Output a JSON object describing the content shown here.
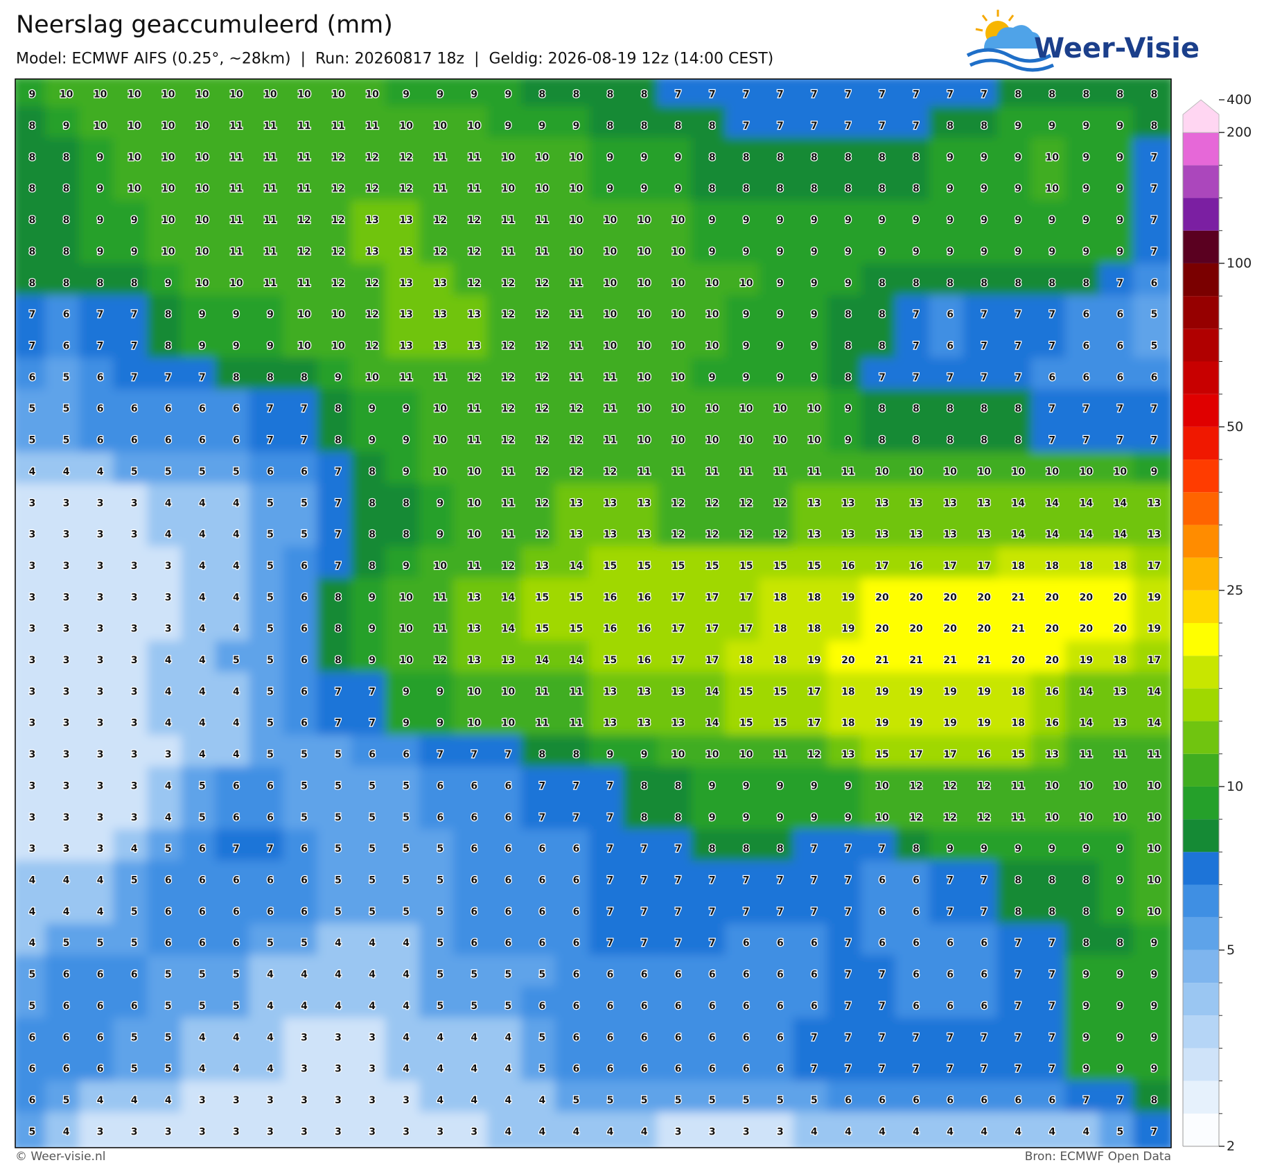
{
  "header": {
    "title": "Neerslag geaccumuleerd (mm)",
    "subtitle": "Model: ECMWF AIFS (0.25°, ~28km)  |  Run: 20260817 18z  |  Geldig: 2026-08-19 12z (14:00 CEST)"
  },
  "logo": {
    "text": "Weer-Visie"
  },
  "footer": {
    "left": "© Weer-visie.nl",
    "right": "Bron: ECMWF Open Data"
  },
  "grid": {
    "values": [
      [
        9,
        10,
        10,
        10,
        10,
        10,
        10,
        10,
        10,
        10,
        10,
        9,
        9,
        9,
        9,
        8,
        8,
        8,
        8,
        7,
        7,
        7,
        7,
        7,
        7,
        7,
        7,
        7,
        7,
        8,
        8,
        8,
        8,
        8
      ],
      [
        8,
        9,
        10,
        10,
        10,
        10,
        11,
        11,
        11,
        11,
        11,
        10,
        10,
        10,
        9,
        9,
        9,
        8,
        8,
        8,
        8,
        7,
        7,
        7,
        7,
        7,
        7,
        8,
        8,
        9,
        9,
        9,
        9,
        8
      ],
      [
        8,
        8,
        9,
        10,
        10,
        10,
        11,
        11,
        11,
        12,
        12,
        12,
        11,
        11,
        10,
        10,
        10,
        9,
        9,
        9,
        8,
        8,
        8,
        8,
        8,
        8,
        8,
        9,
        9,
        9,
        10,
        9,
        9,
        7
      ],
      [
        8,
        8,
        9,
        10,
        10,
        10,
        11,
        11,
        11,
        12,
        12,
        12,
        11,
        11,
        10,
        10,
        10,
        9,
        9,
        9,
        8,
        8,
        8,
        8,
        8,
        8,
        8,
        9,
        9,
        9,
        10,
        9,
        9,
        7
      ],
      [
        8,
        8,
        9,
        9,
        10,
        10,
        11,
        11,
        12,
        12,
        13,
        13,
        12,
        12,
        11,
        11,
        10,
        10,
        10,
        10,
        9,
        9,
        9,
        9,
        9,
        9,
        9,
        9,
        9,
        9,
        9,
        9,
        9,
        7
      ],
      [
        8,
        8,
        9,
        9,
        10,
        10,
        11,
        11,
        12,
        12,
        13,
        13,
        12,
        12,
        11,
        11,
        10,
        10,
        10,
        10,
        9,
        9,
        9,
        9,
        9,
        9,
        9,
        9,
        9,
        9,
        9,
        9,
        9,
        7
      ],
      [
        8,
        8,
        8,
        8,
        9,
        10,
        10,
        11,
        11,
        12,
        12,
        13,
        13,
        12,
        12,
        12,
        11,
        10,
        10,
        10,
        10,
        10,
        9,
        9,
        9,
        8,
        8,
        8,
        8,
        8,
        8,
        8,
        7,
        6
      ],
      [
        7,
        6,
        7,
        7,
        8,
        9,
        9,
        9,
        10,
        10,
        12,
        13,
        13,
        13,
        12,
        12,
        11,
        10,
        10,
        10,
        10,
        9,
        9,
        9,
        8,
        8,
        7,
        6,
        7,
        7,
        7,
        6,
        6,
        5
      ],
      [
        7,
        6,
        7,
        7,
        8,
        9,
        9,
        9,
        10,
        10,
        12,
        13,
        13,
        13,
        12,
        12,
        11,
        10,
        10,
        10,
        10,
        9,
        9,
        9,
        8,
        8,
        7,
        6,
        7,
        7,
        7,
        6,
        6,
        5
      ],
      [
        6,
        5,
        6,
        7,
        7,
        7,
        8,
        8,
        8,
        9,
        10,
        11,
        11,
        12,
        12,
        12,
        11,
        11,
        10,
        10,
        9,
        9,
        9,
        9,
        8,
        7,
        7,
        7,
        7,
        7,
        6,
        6,
        6,
        6
      ],
      [
        5,
        5,
        6,
        6,
        6,
        6,
        6,
        7,
        7,
        8,
        9,
        9,
        10,
        11,
        12,
        12,
        12,
        11,
        10,
        10,
        10,
        10,
        10,
        10,
        9,
        8,
        8,
        8,
        8,
        8,
        7,
        7,
        7,
        7
      ],
      [
        5,
        5,
        6,
        6,
        6,
        6,
        6,
        7,
        7,
        8,
        9,
        9,
        10,
        11,
        12,
        12,
        12,
        11,
        10,
        10,
        10,
        10,
        10,
        10,
        9,
        8,
        8,
        8,
        8,
        8,
        7,
        7,
        7,
        7
      ],
      [
        4,
        4,
        4,
        5,
        5,
        5,
        5,
        6,
        6,
        7,
        8,
        9,
        10,
        10,
        11,
        12,
        12,
        12,
        11,
        11,
        11,
        11,
        11,
        11,
        11,
        10,
        10,
        10,
        10,
        10,
        10,
        10,
        10,
        9
      ],
      [
        3,
        3,
        3,
        3,
        4,
        4,
        4,
        5,
        5,
        7,
        8,
        8,
        9,
        10,
        11,
        12,
        13,
        13,
        13,
        12,
        12,
        12,
        12,
        13,
        13,
        13,
        13,
        13,
        13,
        14,
        14,
        14,
        14,
        13
      ],
      [
        3,
        3,
        3,
        3,
        4,
        4,
        4,
        5,
        5,
        7,
        8,
        8,
        9,
        10,
        11,
        12,
        13,
        13,
        13,
        12,
        12,
        12,
        12,
        13,
        13,
        13,
        13,
        13,
        13,
        14,
        14,
        14,
        14,
        13
      ],
      [
        3,
        3,
        3,
        3,
        3,
        4,
        4,
        5,
        6,
        7,
        8,
        9,
        10,
        11,
        12,
        13,
        14,
        15,
        15,
        15,
        15,
        15,
        15,
        15,
        16,
        17,
        16,
        17,
        17,
        18,
        18,
        18,
        18,
        17
      ],
      [
        3,
        3,
        3,
        3,
        3,
        4,
        4,
        5,
        6,
        8,
        9,
        10,
        11,
        13,
        14,
        15,
        15,
        16,
        16,
        17,
        17,
        17,
        18,
        18,
        19,
        20,
        20,
        20,
        20,
        21,
        20,
        20,
        20,
        19
      ],
      [
        3,
        3,
        3,
        3,
        3,
        4,
        4,
        5,
        6,
        8,
        9,
        10,
        11,
        13,
        14,
        15,
        15,
        16,
        16,
        17,
        17,
        17,
        18,
        18,
        19,
        20,
        20,
        20,
        20,
        21,
        20,
        20,
        20,
        19
      ],
      [
        3,
        3,
        3,
        3,
        4,
        4,
        5,
        5,
        6,
        8,
        9,
        10,
        12,
        13,
        13,
        14,
        14,
        15,
        16,
        17,
        17,
        18,
        18,
        19,
        20,
        21,
        21,
        21,
        21,
        20,
        20,
        19,
        18,
        17
      ],
      [
        3,
        3,
        3,
        3,
        4,
        4,
        4,
        5,
        6,
        7,
        7,
        9,
        9,
        10,
        10,
        11,
        11,
        13,
        13,
        13,
        14,
        15,
        15,
        17,
        18,
        19,
        19,
        19,
        19,
        18,
        16,
        14,
        13,
        14
      ],
      [
        3,
        3,
        3,
        3,
        4,
        4,
        4,
        5,
        6,
        7,
        7,
        9,
        9,
        10,
        10,
        11,
        11,
        13,
        13,
        13,
        14,
        15,
        15,
        17,
        18,
        19,
        19,
        19,
        19,
        18,
        16,
        14,
        13,
        14
      ],
      [
        3,
        3,
        3,
        3,
        3,
        4,
        4,
        5,
        5,
        5,
        6,
        6,
        7,
        7,
        7,
        8,
        8,
        9,
        9,
        10,
        10,
        10,
        11,
        12,
        13,
        15,
        17,
        17,
        16,
        15,
        13,
        11,
        11,
        11
      ],
      [
        3,
        3,
        3,
        3,
        4,
        5,
        6,
        6,
        5,
        5,
        5,
        5,
        6,
        6,
        6,
        7,
        7,
        7,
        8,
        8,
        9,
        9,
        9,
        9,
        9,
        10,
        12,
        12,
        12,
        11,
        10,
        10,
        10,
        10
      ],
      [
        3,
        3,
        3,
        3,
        4,
        5,
        6,
        6,
        5,
        5,
        5,
        5,
        6,
        6,
        6,
        7,
        7,
        7,
        8,
        8,
        9,
        9,
        9,
        9,
        9,
        10,
        12,
        12,
        12,
        11,
        10,
        10,
        10,
        10
      ],
      [
        3,
        3,
        3,
        4,
        5,
        6,
        7,
        7,
        6,
        5,
        5,
        5,
        5,
        6,
        6,
        6,
        6,
        7,
        7,
        7,
        8,
        8,
        8,
        7,
        7,
        7,
        8,
        9,
        9,
        9,
        9,
        9,
        9,
        10
      ],
      [
        4,
        4,
        4,
        5,
        6,
        6,
        6,
        6,
        6,
        5,
        5,
        5,
        5,
        6,
        6,
        6,
        6,
        7,
        7,
        7,
        7,
        7,
        7,
        7,
        7,
        6,
        6,
        7,
        7,
        8,
        8,
        8,
        9,
        10
      ],
      [
        4,
        4,
        4,
        5,
        6,
        6,
        6,
        6,
        6,
        5,
        5,
        5,
        5,
        6,
        6,
        6,
        6,
        7,
        7,
        7,
        7,
        7,
        7,
        7,
        7,
        6,
        6,
        7,
        7,
        8,
        8,
        8,
        9,
        10
      ],
      [
        4,
        5,
        5,
        5,
        6,
        6,
        6,
        5,
        5,
        4,
        4,
        4,
        5,
        6,
        6,
        6,
        6,
        7,
        7,
        7,
        7,
        6,
        6,
        6,
        7,
        6,
        6,
        6,
        6,
        7,
        7,
        8,
        8,
        9
      ],
      [
        5,
        6,
        6,
        6,
        5,
        5,
        5,
        4,
        4,
        4,
        4,
        4,
        5,
        5,
        5,
        5,
        6,
        6,
        6,
        6,
        6,
        6,
        6,
        6,
        7,
        7,
        6,
        6,
        6,
        7,
        7,
        9,
        9,
        9
      ],
      [
        5,
        6,
        6,
        6,
        5,
        5,
        5,
        4,
        4,
        4,
        4,
        4,
        5,
        5,
        5,
        6,
        6,
        6,
        6,
        6,
        6,
        6,
        6,
        6,
        7,
        7,
        6,
        6,
        6,
        7,
        7,
        9,
        9,
        9
      ],
      [
        6,
        6,
        6,
        5,
        5,
        4,
        4,
        4,
        3,
        3,
        3,
        4,
        4,
        4,
        4,
        5,
        6,
        6,
        6,
        6,
        6,
        6,
        6,
        7,
        7,
        7,
        7,
        7,
        7,
        7,
        7,
        9,
        9,
        9
      ],
      [
        6,
        6,
        6,
        5,
        5,
        4,
        4,
        4,
        3,
        3,
        3,
        4,
        4,
        4,
        4,
        5,
        6,
        6,
        6,
        6,
        6,
        6,
        6,
        7,
        7,
        7,
        7,
        7,
        7,
        7,
        7,
        9,
        9,
        9
      ],
      [
        6,
        5,
        4,
        4,
        4,
        3,
        3,
        3,
        3,
        3,
        3,
        3,
        4,
        4,
        4,
        4,
        5,
        5,
        5,
        5,
        5,
        5,
        5,
        5,
        6,
        6,
        6,
        6,
        6,
        6,
        6,
        7,
        7,
        8
      ],
      [
        5,
        4,
        3,
        3,
        3,
        3,
        3,
        3,
        3,
        3,
        3,
        3,
        3,
        3,
        4,
        4,
        4,
        4,
        4,
        3,
        3,
        3,
        3,
        4,
        4,
        4,
        4,
        4,
        4,
        4,
        4,
        4,
        5,
        7
      ]
    ]
  },
  "colorbar": {
    "levels": [
      2,
      2.5,
      3,
      3.5,
      4,
      4.5,
      5,
      6,
      7,
      8,
      9,
      10,
      12.5,
      15,
      17.5,
      20,
      22.5,
      25,
      30,
      35,
      40,
      45,
      50,
      60,
      70,
      80,
      90,
      100,
      125,
      150,
      175,
      200,
      400
    ],
    "colors": [
      "#fbfdff",
      "#e6f1fc",
      "#cfe3f9",
      "#b5d5f6",
      "#9ac6f2",
      "#7eb5ee",
      "#5ea3e9",
      "#3f8fe3",
      "#1d74d8",
      "#158a35",
      "#25a02a",
      "#40ad20",
      "#70c410",
      "#a0d800",
      "#c8e600",
      "#ffff00",
      "#ffd700",
      "#ffb400",
      "#ff8c00",
      "#ff6400",
      "#ff3c00",
      "#f01800",
      "#e00000",
      "#c80000",
      "#b00000",
      "#960000",
      "#7a0000",
      "#5a0020",
      "#7b1fa2",
      "#ab47bc",
      "#e668d8",
      "#ffd6f2"
    ],
    "ticks": [
      2,
      5,
      10,
      25,
      50,
      100,
      200,
      400
    ]
  }
}
